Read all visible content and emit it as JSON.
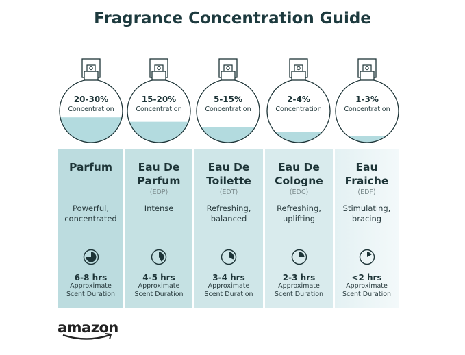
{
  "title": "Fragrance Concentration Guide",
  "colors": {
    "title": "#1d3a3e",
    "liquid": "#b3dbdf",
    "outline": "#1d3437",
    "column_start": "#b9dcdf",
    "column_end": "#f3f9fa"
  },
  "brand": "amazon",
  "types": [
    {
      "concentration": "20-30%",
      "concentration_label": "Concentration",
      "fill_level": 0.4,
      "name_lines": [
        "Parfum",
        ""
      ],
      "abbr": "",
      "desc_lines": [
        "Powerful,",
        "concentrated"
      ],
      "duration": "6-8 hrs",
      "duration_label_1": "Approximate",
      "duration_label_2": "Scent Duration",
      "clock_fraction": 0.75,
      "bg": "#bcdcdf"
    },
    {
      "concentration": "15-20%",
      "concentration_label": "Concentration",
      "fill_level": 0.33,
      "name_lines": [
        "Eau De",
        "Parfum"
      ],
      "abbr": "(EDP)",
      "desc_lines": [
        "Intense",
        ""
      ],
      "duration": "4-5 hrs",
      "duration_label_1": "Approximate",
      "duration_label_2": "Scent Duration",
      "clock_fraction": 0.42,
      "bg": "#c5e1e3"
    },
    {
      "concentration": "5-15%",
      "concentration_label": "Concentration",
      "fill_level": 0.25,
      "name_lines": [
        "Eau De",
        "Toilette"
      ],
      "abbr": "(EDT)",
      "desc_lines": [
        "Refreshing,",
        "balanced"
      ],
      "duration": "3-4 hrs",
      "duration_label_1": "Approximate",
      "duration_label_2": "Scent Duration",
      "clock_fraction": 0.33,
      "bg": "#cfe6e8"
    },
    {
      "concentration": "2-4%",
      "concentration_label": "Concentration",
      "fill_level": 0.17,
      "name_lines": [
        "Eau De",
        "Cologne"
      ],
      "abbr": "(EDC)",
      "desc_lines": [
        "Refreshing,",
        "uplifting"
      ],
      "duration": "2-3 hrs",
      "duration_label_1": "Approximate",
      "duration_label_2": "Scent Duration",
      "clock_fraction": 0.25,
      "bg": "#d9ebed"
    },
    {
      "concentration": "1-3%",
      "concentration_label": "Concentration",
      "fill_level": 0.1,
      "name_lines": [
        "Eau",
        "Fraiche"
      ],
      "abbr": "(EDF)",
      "desc_lines": [
        "Stimulating,",
        "bracing"
      ],
      "duration": "<2 hrs",
      "duration_label_1": "Approximate",
      "duration_label_2": "Scent Duration",
      "clock_fraction": 0.17,
      "bg": "#e4f1f3"
    }
  ]
}
